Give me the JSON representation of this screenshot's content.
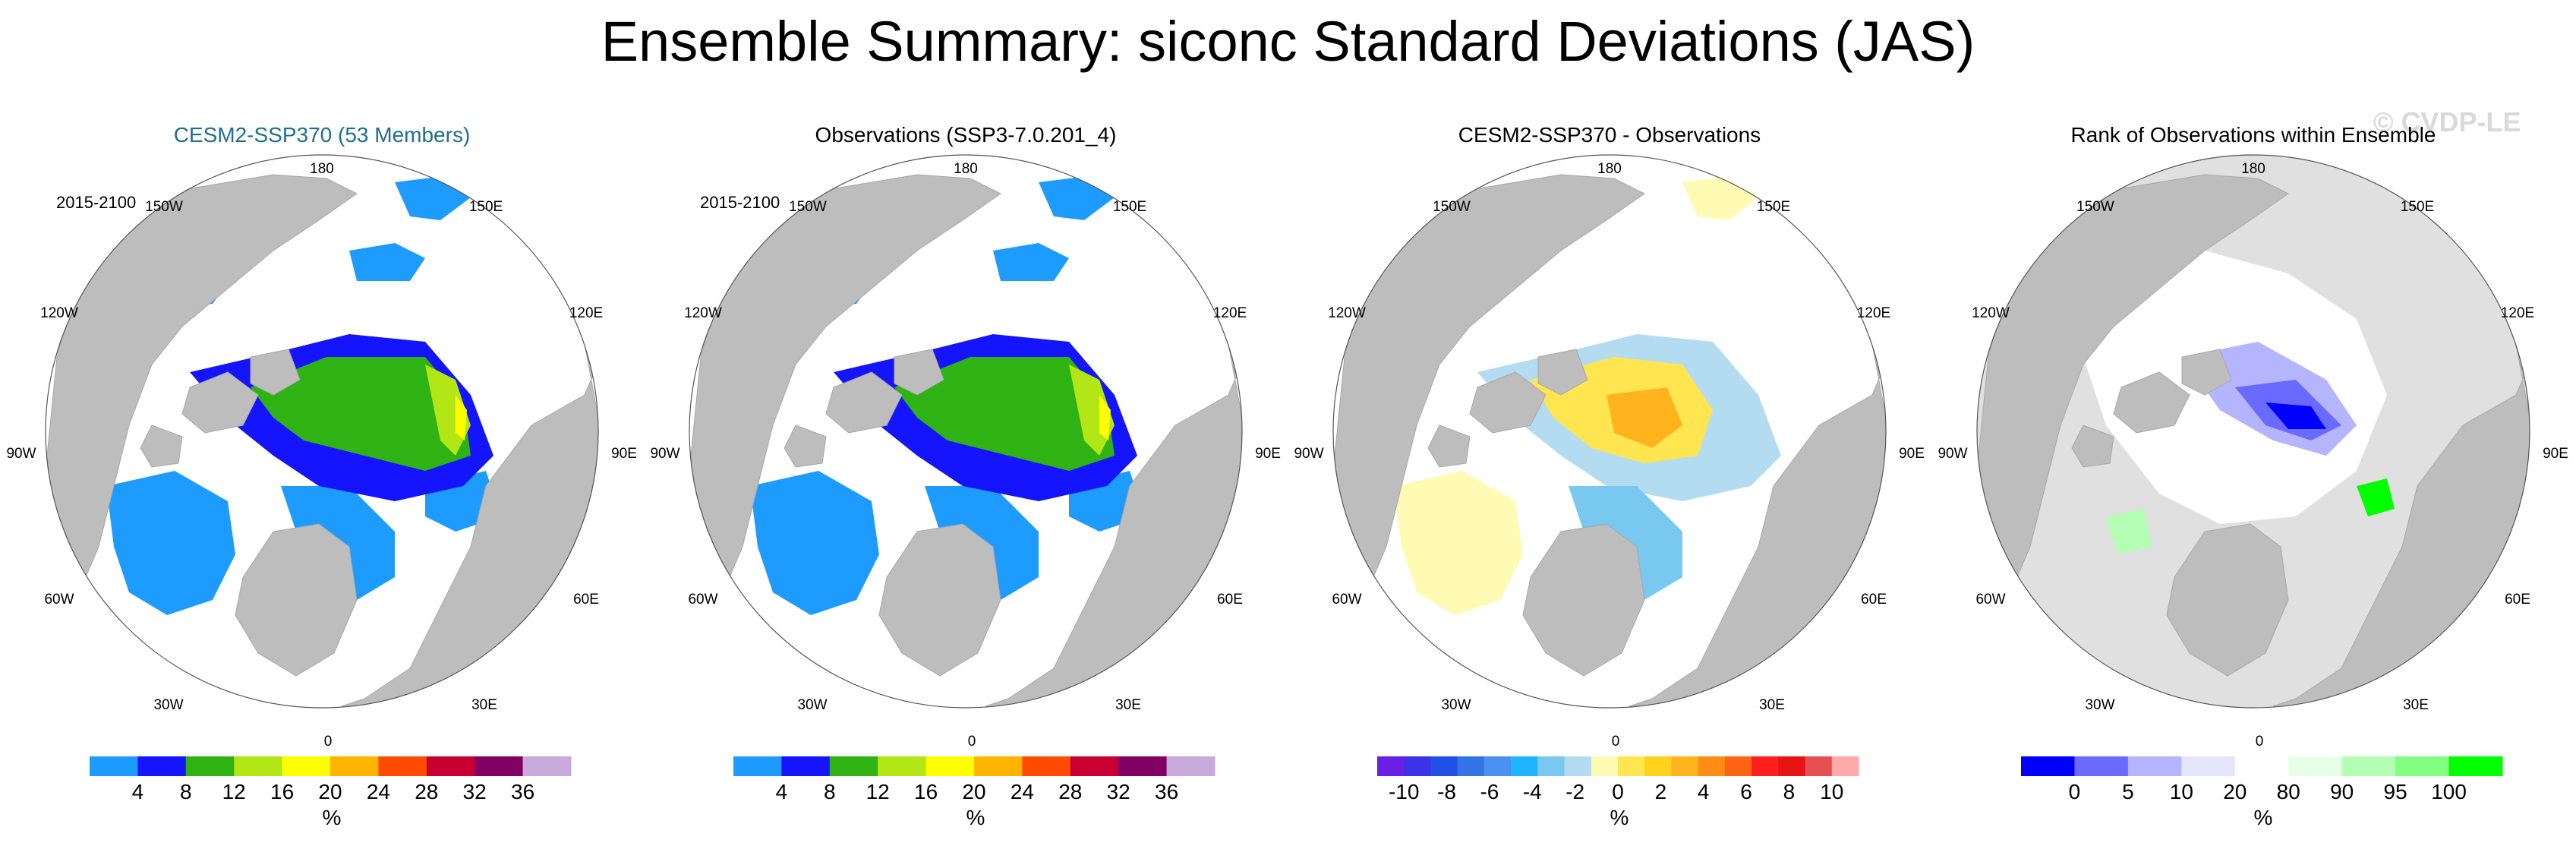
{
  "title": "Ensemble Summary: siconc Standard Deviations (JAS)",
  "watermark": "© CVDP-LE",
  "longitude_labels": [
    "180",
    "150W",
    "150E",
    "120W",
    "120E",
    "90W",
    "90E",
    "60W",
    "60E",
    "30W",
    "30E",
    "0"
  ],
  "colors": {
    "land": "#bdbdbd",
    "ocean": "#ffffff",
    "outside_rank": "#e0e0e0",
    "title_accent": "#1f6e8c",
    "watermark": "#d9d9d9"
  },
  "chart_data": [
    {
      "type": "heatmap",
      "title": "CESM2-SSP370 (53 Members)",
      "period": "2015-2100",
      "unit_label": "%",
      "colorbar": {
        "colors": [
          "#1e9bff",
          "#1414ff",
          "#2eb214",
          "#b2e614",
          "#ffff00",
          "#ffb400",
          "#ff4b00",
          "#c80032",
          "#820064",
          "#c8aadc"
        ],
        "tick_labels": [
          "4",
          "8",
          "12",
          "16",
          "20",
          "24",
          "28",
          "32",
          "36"
        ]
      }
    },
    {
      "type": "heatmap",
      "title": "Observations (SSP3-7.0.201_4)",
      "period": "2015-2100",
      "unit_label": "%",
      "colorbar": {
        "colors": [
          "#1e9bff",
          "#1414ff",
          "#2eb214",
          "#b2e614",
          "#ffff00",
          "#ffb400",
          "#ff4b00",
          "#c80032",
          "#820064",
          "#c8aadc"
        ],
        "tick_labels": [
          "4",
          "8",
          "12",
          "16",
          "20",
          "24",
          "28",
          "32",
          "36"
        ]
      }
    },
    {
      "type": "heatmap",
      "title": "CESM2-SSP370 - Observations",
      "unit_label": "%",
      "colorbar": {
        "colors": [
          "#6a1fe6",
          "#3c32e6",
          "#2050e6",
          "#3373e6",
          "#4a90f0",
          "#1fb4ff",
          "#78c8f0",
          "#b4dcf0",
          "#fffab4",
          "#ffe650",
          "#ffd21e",
          "#ffb41e",
          "#ff8c14",
          "#ff6414",
          "#ff1e1e",
          "#e61414",
          "#e65050",
          "#ffaaaa"
        ],
        "tick_labels": [
          "-10",
          "-8",
          "-6",
          "-4",
          "-2",
          "0",
          "2",
          "4",
          "6",
          "8",
          "10"
        ]
      }
    },
    {
      "type": "heatmap",
      "title": "Rank of Observations within Ensemble",
      "unit_label": "%",
      "colorbar": {
        "colors": [
          "#0000ff",
          "#6a6aff",
          "#b4b4ff",
          "#e6e6fa",
          "#ffffff",
          "#e6ffe6",
          "#b4ffb4",
          "#82ff82",
          "#00ff00"
        ],
        "tick_labels": [
          "0",
          "5",
          "10",
          "20",
          "80",
          "90",
          "95",
          "100"
        ]
      }
    }
  ]
}
